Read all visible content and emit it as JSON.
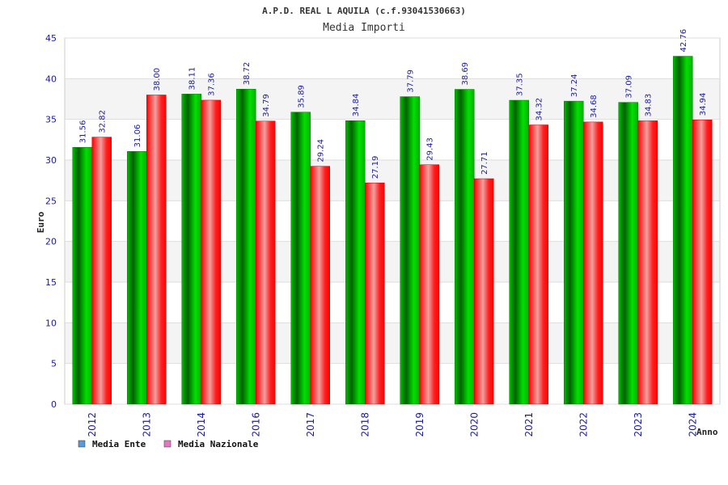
{
  "chart_data": {
    "type": "bar",
    "title": "A.P.D. REAL L AQUILA (c.f.93041530663)",
    "subtitle": "Media Importi",
    "xlabel": "Anno",
    "ylabel": "Euro",
    "ylim": [
      0,
      45
    ],
    "yticks": [
      0,
      5,
      10,
      15,
      20,
      25,
      30,
      35,
      40,
      45
    ],
    "grid": true,
    "legend_position": "bottom-left",
    "categories": [
      "2012",
      "2013",
      "2014",
      "2016",
      "2017",
      "2018",
      "2019",
      "2020",
      "2021",
      "2022",
      "2023",
      "2024"
    ],
    "series": [
      {
        "name": "Media Ente",
        "color": "#00a000",
        "legend_color": "#5b9bd5",
        "values": [
          31.56,
          31.06,
          38.11,
          38.72,
          35.89,
          34.84,
          37.79,
          38.69,
          37.35,
          37.24,
          37.09,
          42.76
        ],
        "labels": [
          "31.56",
          "31.06",
          "38.11",
          "38.72",
          "35.89",
          "34.84",
          "37.79",
          "38.69",
          "37.35",
          "37.24",
          "37.09",
          "42.76"
        ]
      },
      {
        "name": "Media Nazionale",
        "color": "#ff0000",
        "legend_color": "#e377c2",
        "values": [
          32.82,
          38.0,
          37.36,
          34.79,
          29.24,
          27.19,
          29.43,
          27.71,
          34.32,
          34.68,
          34.83,
          34.94
        ],
        "labels": [
          "32.82",
          "38.00",
          "37.36",
          "34.79",
          "29.24",
          "27.19",
          "29.43",
          "27.71",
          "34.32",
          "34.68",
          "34.83",
          "34.94"
        ]
      }
    ]
  }
}
